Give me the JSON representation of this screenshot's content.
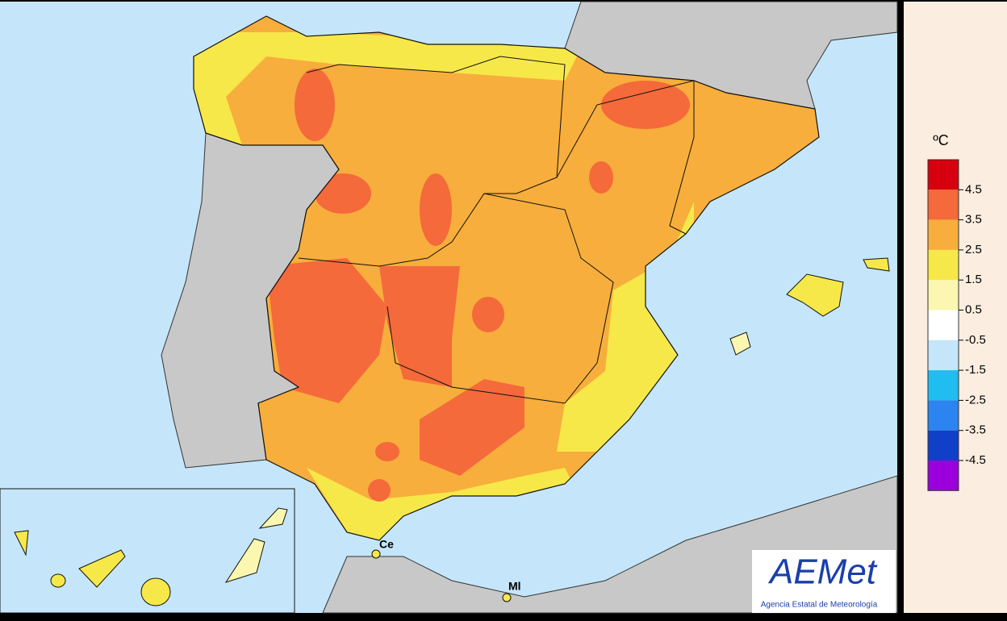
{
  "legend": {
    "unit": "ºC",
    "ticks": [
      4.5,
      3.5,
      2.5,
      1.5,
      0.5,
      -0.5,
      -1.5,
      -2.5,
      -3.5,
      -4.5
    ],
    "colors": [
      "#d7000f",
      "#f46a3b",
      "#f7ae3c",
      "#f7e84a",
      "#fbf6b0",
      "#ffffff",
      "#c5e6fa",
      "#1fbdf0",
      "#2c84f0",
      "#1040c8",
      "#9b00dc"
    ]
  },
  "places": [
    {
      "label": "Ce"
    },
    {
      "label": "Ml"
    }
  ],
  "logo": {
    "text": "AEMet",
    "caption": "Agencia Estatal de Meteorología"
  }
}
